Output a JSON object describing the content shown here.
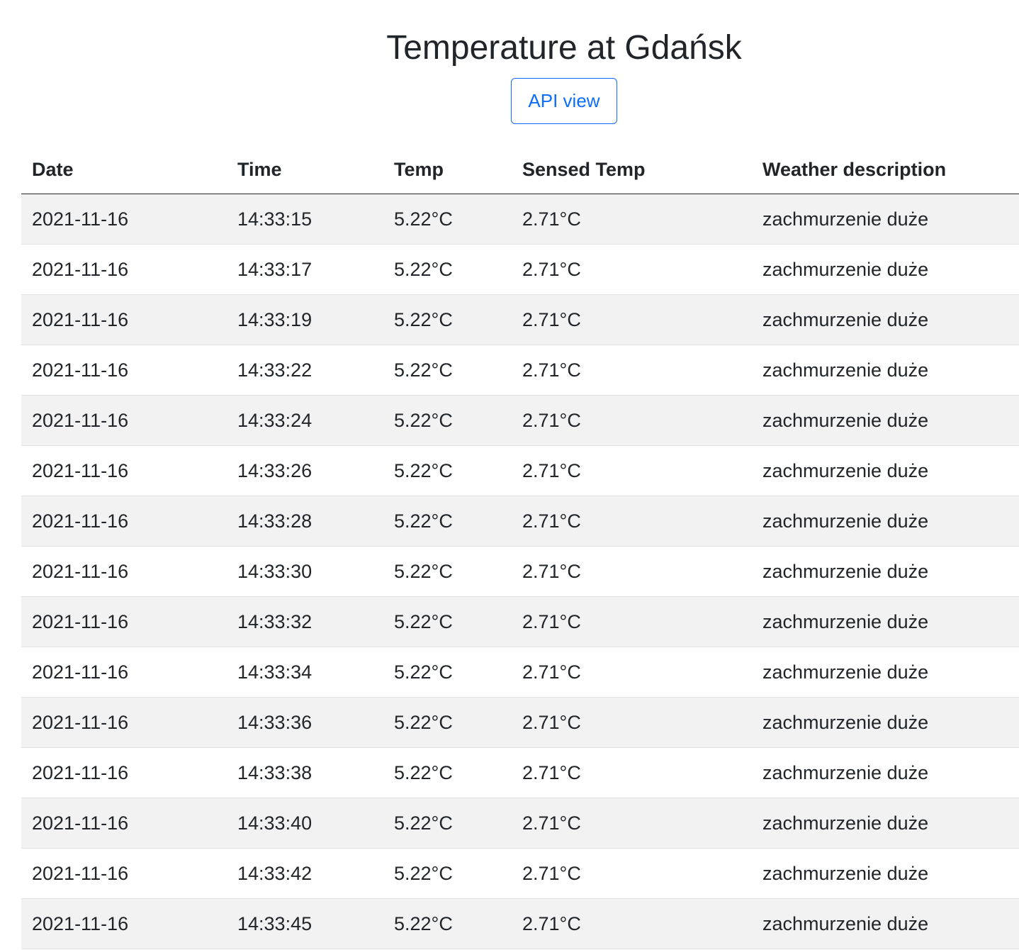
{
  "page": {
    "title": "Temperature at Gdańsk",
    "api_button_label": "API view"
  },
  "colors": {
    "accent": "#0d6efd",
    "text": "#212529",
    "stripe": "#f2f2f2"
  },
  "table": {
    "headers": [
      "Date",
      "Time",
      "Temp",
      "Sensed Temp",
      "Weather description"
    ],
    "rows": [
      [
        "2021-11-16",
        "14:33:15",
        "5.22°C",
        "2.71°C",
        "zachmurzenie duże"
      ],
      [
        "2021-11-16",
        "14:33:17",
        "5.22°C",
        "2.71°C",
        "zachmurzenie duże"
      ],
      [
        "2021-11-16",
        "14:33:19",
        "5.22°C",
        "2.71°C",
        "zachmurzenie duże"
      ],
      [
        "2021-11-16",
        "14:33:22",
        "5.22°C",
        "2.71°C",
        "zachmurzenie duże"
      ],
      [
        "2021-11-16",
        "14:33:24",
        "5.22°C",
        "2.71°C",
        "zachmurzenie duże"
      ],
      [
        "2021-11-16",
        "14:33:26",
        "5.22°C",
        "2.71°C",
        "zachmurzenie duże"
      ],
      [
        "2021-11-16",
        "14:33:28",
        "5.22°C",
        "2.71°C",
        "zachmurzenie duże"
      ],
      [
        "2021-11-16",
        "14:33:30",
        "5.22°C",
        "2.71°C",
        "zachmurzenie duże"
      ],
      [
        "2021-11-16",
        "14:33:32",
        "5.22°C",
        "2.71°C",
        "zachmurzenie duże"
      ],
      [
        "2021-11-16",
        "14:33:34",
        "5.22°C",
        "2.71°C",
        "zachmurzenie duże"
      ],
      [
        "2021-11-16",
        "14:33:36",
        "5.22°C",
        "2.71°C",
        "zachmurzenie duże"
      ],
      [
        "2021-11-16",
        "14:33:38",
        "5.22°C",
        "2.71°C",
        "zachmurzenie duże"
      ],
      [
        "2021-11-16",
        "14:33:40",
        "5.22°C",
        "2.71°C",
        "zachmurzenie duże"
      ],
      [
        "2021-11-16",
        "14:33:42",
        "5.22°C",
        "2.71°C",
        "zachmurzenie duże"
      ],
      [
        "2021-11-16",
        "14:33:45",
        "5.22°C",
        "2.71°C",
        "zachmurzenie duże"
      ]
    ]
  }
}
